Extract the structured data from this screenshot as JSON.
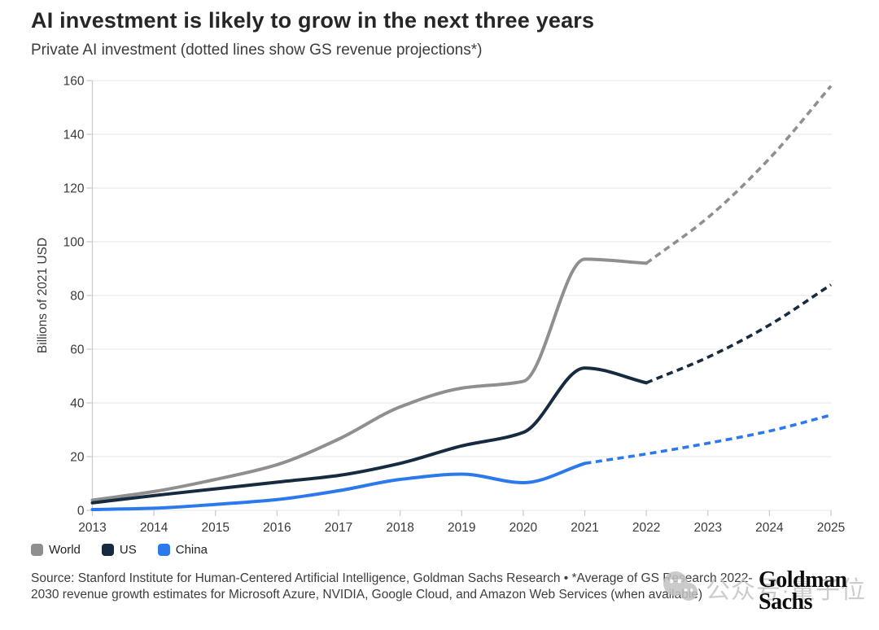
{
  "header": {
    "title": "AI investment is likely to grow in the next three years",
    "subtitle": "Private AI investment (dotted lines show GS revenue projections*)"
  },
  "chart_data": {
    "type": "line",
    "title": "AI investment is likely to grow in the next three years",
    "subtitle": "Private AI investment (dotted lines show GS revenue projections*)",
    "ylabel": "Billions of 2021 USD",
    "xlabel": "",
    "ylim": [
      0,
      160
    ],
    "yticks": [
      0,
      20,
      40,
      60,
      80,
      100,
      120,
      140,
      160
    ],
    "xticks": [
      2013,
      2014,
      2015,
      2016,
      2017,
      2018,
      2019,
      2020,
      2021,
      2022,
      2023,
      2024,
      2025
    ],
    "grid": "horizontal",
    "legend_position": "bottom-left",
    "projection_note": "dotted lines show GS revenue projections",
    "grid_color": "#e9e9e9",
    "axis_color": "#cccccc",
    "series": [
      {
        "name": "World",
        "color": "#8f8f8f",
        "actual": {
          "years": [
            2013,
            2014,
            2015,
            2016,
            2017,
            2018,
            2019,
            2020,
            2021,
            2022
          ],
          "values": [
            3.8,
            7,
            11.5,
            17,
            26.5,
            38.5,
            45.5,
            48,
            93.5,
            92
          ]
        },
        "projected": {
          "years": [
            2022,
            2023,
            2024,
            2025
          ],
          "values": [
            92,
            109,
            131,
            158
          ]
        }
      },
      {
        "name": "US",
        "color": "#172b40",
        "actual": {
          "years": [
            2013,
            2014,
            2015,
            2016,
            2017,
            2018,
            2019,
            2020,
            2021,
            2022
          ],
          "values": [
            2.8,
            5.5,
            8,
            10.5,
            13,
            17.5,
            24,
            29,
            53,
            47.5
          ]
        },
        "projected": {
          "years": [
            2022,
            2023,
            2024,
            2025
          ],
          "values": [
            47.5,
            57,
            69,
            84
          ]
        }
      },
      {
        "name": "China",
        "color": "#2b79ec",
        "actual": {
          "years": [
            2013,
            2014,
            2015,
            2016,
            2017,
            2018,
            2019,
            2020,
            2021
          ],
          "values": [
            0.3,
            0.8,
            2.2,
            4,
            7.3,
            11.5,
            13.5,
            10.3,
            17.5
          ]
        },
        "projected": {
          "years": [
            2021,
            2022,
            2023,
            2024,
            2025
          ],
          "values": [
            17.5,
            21,
            25,
            29.5,
            35.5
          ]
        }
      }
    ]
  },
  "footer": {
    "source": "Source: Stanford Institute for Human-Centered Artificial Intelligence, Goldman Sachs Research • *Average of GS Research 2022-2030 revenue growth estimates for Microsoft Azure, NVIDIA, Google Cloud, and Amazon Web Services (when available)"
  },
  "watermark": {
    "text": "公众号·量子位"
  },
  "logo": {
    "line1": "Goldman",
    "line2": "Sachs"
  }
}
